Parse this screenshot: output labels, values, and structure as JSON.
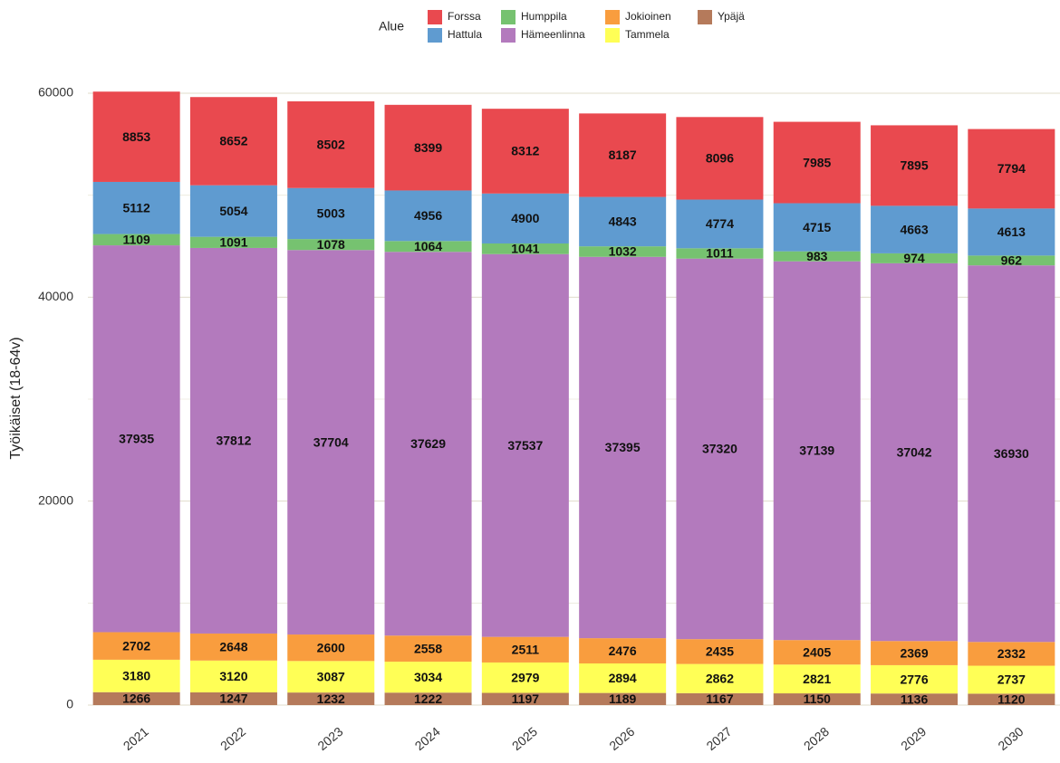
{
  "chart_data": {
    "type": "stacked_bar",
    "y_label": "Työikäiset (18-64v)",
    "legend_title": "Alue",
    "categories": [
      "2021",
      "2022",
      "2023",
      "2024",
      "2025",
      "2026",
      "2027",
      "2028",
      "2029",
      "2030"
    ],
    "series": [
      {
        "name": "Forssa",
        "color": "#e9494f",
        "values": [
          8853,
          8652,
          8502,
          8399,
          8312,
          8187,
          8096,
          7985,
          7895,
          7794
        ]
      },
      {
        "name": "Hattula",
        "color": "#5f9bd0",
        "values": [
          5112,
          5054,
          5003,
          4956,
          4900,
          4843,
          4774,
          4715,
          4663,
          4613
        ]
      },
      {
        "name": "Humppila",
        "color": "#76c270",
        "values": [
          1109,
          1091,
          1078,
          1064,
          1041,
          1032,
          1011,
          983,
          974,
          962
        ]
      },
      {
        "name": "Hämeenlinna",
        "color": "#b37abd",
        "values": [
          37935,
          37812,
          37704,
          37629,
          37537,
          37395,
          37320,
          37139,
          37042,
          36930
        ]
      },
      {
        "name": "Jokioinen",
        "color": "#f99d3e",
        "values": [
          2702,
          2648,
          2600,
          2558,
          2511,
          2476,
          2435,
          2405,
          2369,
          2332
        ]
      },
      {
        "name": "Tammela",
        "color": "#ffff56",
        "values": [
          3180,
          3120,
          3087,
          3034,
          2979,
          2894,
          2862,
          2821,
          2776,
          2737
        ]
      },
      {
        "name": "Ypäjä",
        "color": "#b57a5b",
        "values": [
          1266,
          1247,
          1232,
          1222,
          1197,
          1189,
          1167,
          1150,
          1136,
          1120
        ]
      }
    ],
    "stack_order": [
      "Ypäjä",
      "Tammela",
      "Jokioinen",
      "Hämeenlinna",
      "Humppila",
      "Hattula",
      "Forssa"
    ],
    "ylim": [
      0,
      62000
    ],
    "yticks": [
      0,
      20000,
      40000,
      60000
    ],
    "minor_yticks": [
      10000,
      30000,
      50000
    ],
    "grid": true
  }
}
